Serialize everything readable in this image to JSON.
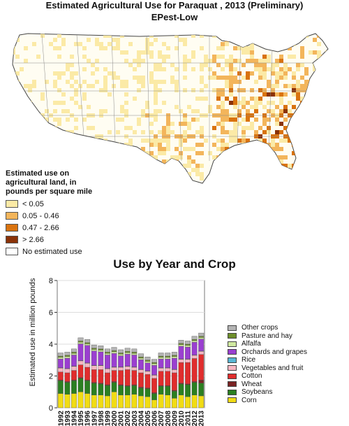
{
  "map": {
    "title": "Estimated Agricultural Use for Paraquat , 2013 (Preliminary)",
    "subtitle": "EPest-Low",
    "legend_title_lines": [
      "Estimated use on",
      "agricultural land, in",
      "pounds per square mile"
    ],
    "legend": [
      {
        "label": "< 0.05",
        "color": "#fbeaa6"
      },
      {
        "label": "0.05 - 0.46",
        "color": "#f3b55b"
      },
      {
        "label": "0.47 - 2.66",
        "color": "#d9730f"
      },
      {
        "label": "> 2.66",
        "color": "#8a3208"
      },
      {
        "label": "No estimated use",
        "color": "#ffffff"
      }
    ]
  },
  "chart_data": {
    "type": "bar",
    "stacked": true,
    "title": "Use by Year and Crop",
    "xlabel": "",
    "ylabel": "Estimated use in million pounds",
    "ylim": [
      0,
      8
    ],
    "yticks": [
      0,
      2,
      4,
      6,
      8
    ],
    "grid": true,
    "legend_position": "right",
    "categories": [
      "1992",
      "1993",
      "1994",
      "1995",
      "1996",
      "1997",
      "1998",
      "1999",
      "2000",
      "2001",
      "2002",
      "2003",
      "2004",
      "2005",
      "2006",
      "2007",
      "2008",
      "2009",
      "2010",
      "2011",
      "2012",
      "2013"
    ],
    "series": [
      {
        "name": "Corn",
        "color": "#f1dc14",
        "values": [
          0.9,
          0.85,
          0.9,
          1.0,
          0.9,
          0.8,
          0.8,
          0.75,
          1.0,
          0.8,
          0.8,
          0.85,
          0.75,
          0.7,
          0.5,
          0.85,
          0.8,
          0.6,
          0.8,
          0.7,
          0.8,
          0.75
        ]
      },
      {
        "name": "Soybeans",
        "color": "#2b7f21",
        "values": [
          0.8,
          0.75,
          0.8,
          0.85,
          0.8,
          0.75,
          0.7,
          0.65,
          0.6,
          0.6,
          0.55,
          0.55,
          0.5,
          0.5,
          0.4,
          0.5,
          0.55,
          0.45,
          0.7,
          0.75,
          0.8,
          0.8
        ]
      },
      {
        "name": "Wheat",
        "color": "#7a2323",
        "values": [
          0.05,
          0.05,
          0.05,
          0.05,
          0.05,
          0.05,
          0.05,
          0.05,
          0.05,
          0.05,
          0.05,
          0.05,
          0.05,
          0.05,
          0.05,
          0.05,
          0.05,
          0.05,
          0.05,
          0.05,
          0.05,
          0.2
        ]
      },
      {
        "name": "Cotton",
        "color": "#e02d2d",
        "values": [
          0.5,
          0.55,
          0.6,
          0.8,
          0.8,
          0.8,
          0.85,
          0.75,
          0.7,
          0.9,
          1.0,
          0.9,
          0.9,
          0.85,
          0.9,
          0.9,
          0.9,
          1.1,
          1.3,
          1.35,
          1.45,
          1.6
        ]
      },
      {
        "name": "Vegetables and fruit",
        "color": "#f7b6c2",
        "values": [
          0.25,
          0.25,
          0.25,
          0.25,
          0.25,
          0.25,
          0.25,
          0.25,
          0.2,
          0.2,
          0.2,
          0.2,
          0.2,
          0.2,
          0.2,
          0.2,
          0.2,
          0.2,
          0.2,
          0.2,
          0.2,
          0.2
        ]
      },
      {
        "name": "Rice",
        "color": "#58b6d4",
        "values": [
          0.02,
          0.02,
          0.02,
          0.02,
          0.02,
          0.02,
          0.02,
          0.02,
          0.02,
          0.02,
          0.02,
          0.02,
          0.02,
          0.02,
          0.02,
          0.02,
          0.02,
          0.02,
          0.02,
          0.02,
          0.02,
          0.02
        ]
      },
      {
        "name": "Orchards and grapes",
        "color": "#9a3fd0",
        "values": [
          0.55,
          0.65,
          0.7,
          1.05,
          1.1,
          0.9,
          0.85,
          0.85,
          0.85,
          0.7,
          0.75,
          0.75,
          0.6,
          0.5,
          0.6,
          0.55,
          0.55,
          0.7,
          0.8,
          0.75,
          0.8,
          0.75
        ]
      },
      {
        "name": "Alfalfa",
        "color": "#d0e9a0",
        "values": [
          0.1,
          0.1,
          0.1,
          0.1,
          0.1,
          0.1,
          0.1,
          0.1,
          0.1,
          0.1,
          0.1,
          0.1,
          0.1,
          0.1,
          0.1,
          0.1,
          0.1,
          0.1,
          0.1,
          0.1,
          0.1,
          0.1
        ]
      },
      {
        "name": "Pasture and hay",
        "color": "#6e8f2a",
        "values": [
          0.08,
          0.08,
          0.08,
          0.08,
          0.08,
          0.08,
          0.08,
          0.08,
          0.08,
          0.08,
          0.08,
          0.08,
          0.08,
          0.08,
          0.08,
          0.08,
          0.08,
          0.08,
          0.08,
          0.08,
          0.08,
          0.08
        ]
      },
      {
        "name": "Other crops",
        "color": "#b4b4b4",
        "values": [
          0.2,
          0.2,
          0.2,
          0.2,
          0.2,
          0.2,
          0.2,
          0.2,
          0.2,
          0.2,
          0.2,
          0.2,
          0.2,
          0.2,
          0.2,
          0.2,
          0.2,
          0.2,
          0.2,
          0.2,
          0.2,
          0.2
        ]
      }
    ]
  }
}
